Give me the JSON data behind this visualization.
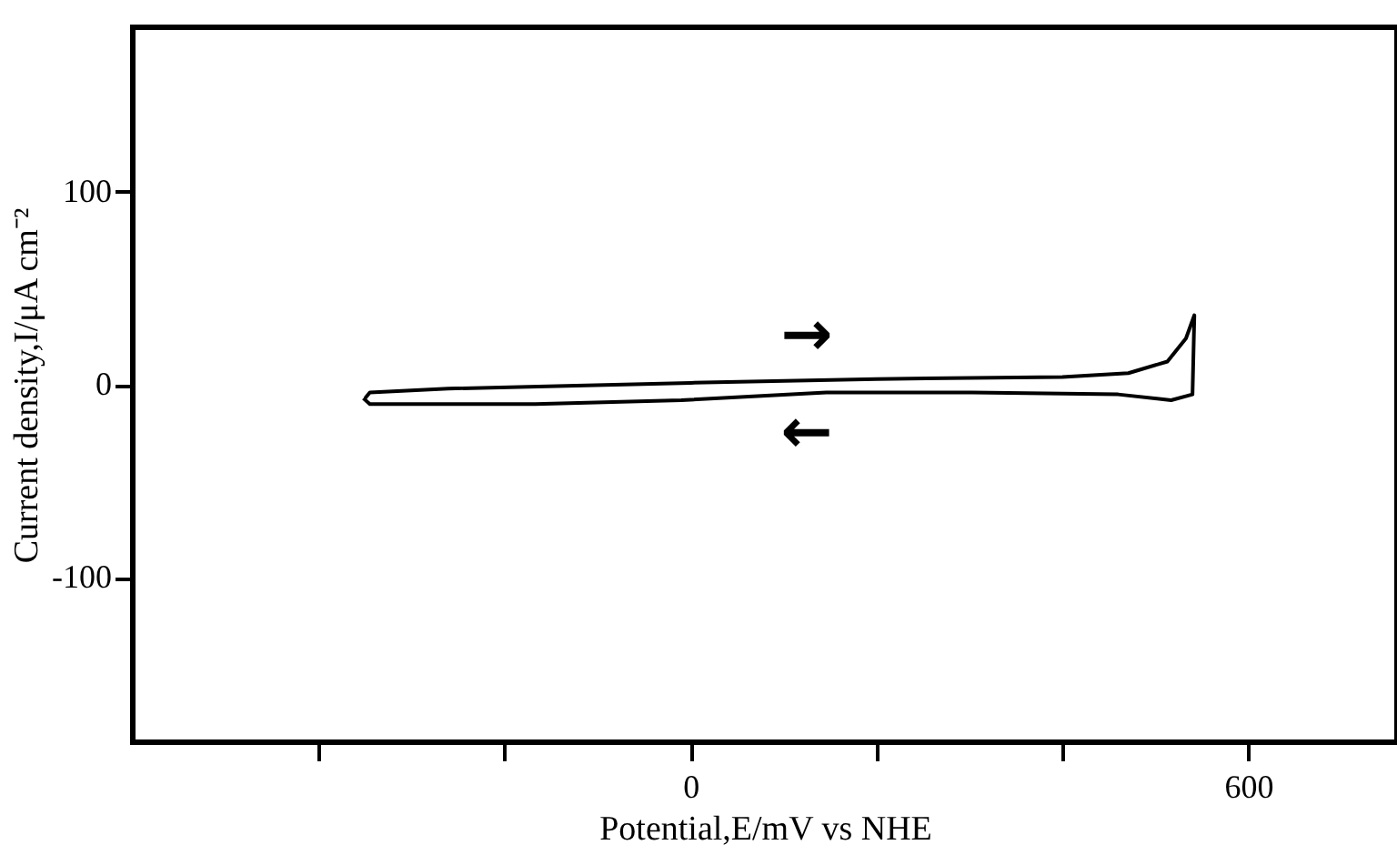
{
  "chart_data": {
    "type": "line",
    "xlabel": "Potential,E/mV vs NHE",
    "ylabel": "Current density,I/μA cm⁻²",
    "xlim": [
      -600,
      760
    ],
    "ylim": [
      -185,
      185
    ],
    "xticks": [
      {
        "value": -400,
        "label": null
      },
      {
        "value": -200,
        "label": null
      },
      0,
      {
        "value": 200,
        "label": null
      },
      {
        "value": 400,
        "label": null
      },
      600
    ],
    "yticks": [
      -100,
      0,
      100
    ],
    "series": [
      {
        "color": "#000000",
        "x": [
          -350,
          -345,
          -261,
          0,
          200,
          400,
          471,
          513,
          533,
          542,
          540,
          517,
          460,
          303,
          146,
          -10,
          -167,
          -345,
          -352
        ],
        "values": [
          -7,
          -4,
          -2,
          1,
          3,
          4,
          6,
          12,
          24,
          36,
          -5,
          -8,
          -5,
          -4,
          -4,
          -8,
          -10,
          -10,
          -7
        ]
      }
    ],
    "marker": "none",
    "line_style": "solid",
    "annotations": [
      "→",
      "←"
    ]
  }
}
